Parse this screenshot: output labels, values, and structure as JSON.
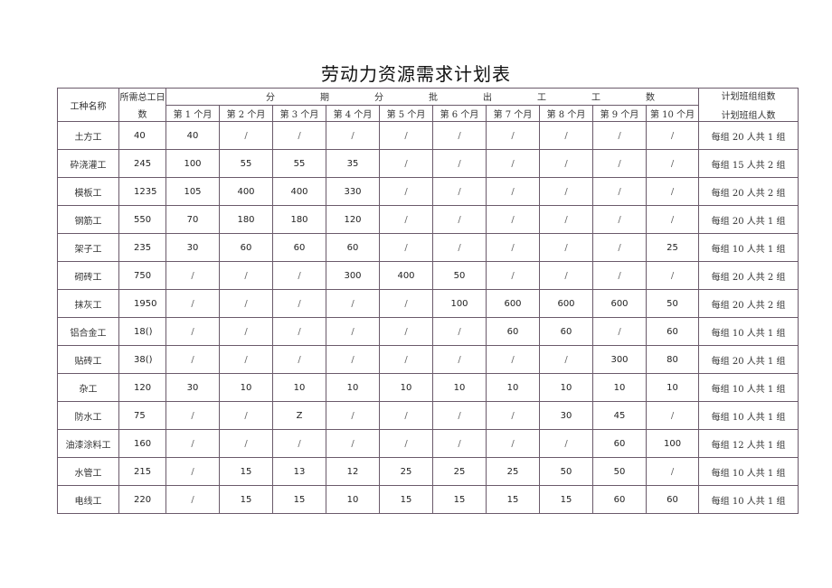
{
  "title": "劳动力资源需求计划表",
  "headers": {
    "trade": "工种名称",
    "total_days_line1": "所需总工日",
    "total_days_line2": "数",
    "period_chars": [
      "分",
      "期",
      "分",
      "批",
      "出",
      "工",
      "工",
      "数"
    ],
    "months": [
      "第 1 个月",
      "第 2 个月",
      "第 3 个月",
      "第 4 个月",
      "第 5 个月",
      "第 6 个月",
      "第 7 个月",
      "第 8 个月",
      "第 9 个月",
      "第 10 个月"
    ],
    "team_line1": "计划班组组数",
    "team_line2": "计划班组人数"
  },
  "rows": [
    {
      "trade": "土方工",
      "total": "40",
      "months": [
        "40",
        "/",
        "/",
        "/",
        "/",
        "/",
        "/",
        "/",
        "/",
        "/"
      ],
      "team": "每组 20 人共 1 组"
    },
    {
      "trade": "砕浇灌工",
      "total": "245",
      "months": [
        "100",
        "55",
        "55",
        "35",
        "/",
        "/",
        "/",
        "/",
        "/",
        "/"
      ],
      "team": "每组 15 人共 2 组"
    },
    {
      "trade": "模板工",
      "total": "1235",
      "months": [
        "105",
        "400",
        "400",
        "330",
        "/",
        "/",
        "/",
        "/",
        "/",
        "/"
      ],
      "team": "每组 20 人共 2 组"
    },
    {
      "trade": "钢筋工",
      "total": "550",
      "months": [
        "70",
        "180",
        "180",
        "120",
        "/",
        "/",
        "/",
        "/",
        "/",
        "/"
      ],
      "team": "每组 20 人共 1 组"
    },
    {
      "trade": "架子工",
      "total": "235",
      "months": [
        "30",
        "60",
        "60",
        "60",
        "/",
        "/",
        "/",
        "/",
        "/",
        "25"
      ],
      "team": "每组 10 人共 1 组"
    },
    {
      "trade": "砌砖工",
      "total": "750",
      "months": [
        "/",
        "/",
        "/",
        "300",
        "400",
        "50",
        "/",
        "/",
        "/",
        "/"
      ],
      "team": "每组 20 人共 2 组"
    },
    {
      "trade": "抹灰工",
      "total": "1950",
      "months": [
        "/",
        "/",
        "/",
        "/",
        "/",
        "100",
        "600",
        "600",
        "600",
        "50"
      ],
      "team": "每组 20 人共 2 组"
    },
    {
      "trade": "铝合金工",
      "total": "18()",
      "months": [
        "/",
        "/",
        "/",
        "/",
        "/",
        "/",
        "60",
        "60",
        "/",
        "60"
      ],
      "team": "每组 10 人共 1 组"
    },
    {
      "trade": "贴砖工",
      "total": "38()",
      "months": [
        "/",
        "/",
        "/",
        "/",
        "/",
        "/",
        "/",
        "/",
        "300",
        "80"
      ],
      "team": "每组 20 人共 1 组"
    },
    {
      "trade": "杂工",
      "total": "120",
      "months": [
        "30",
        "10",
        "10",
        "10",
        "10",
        "10",
        "10",
        "10",
        "10",
        "10"
      ],
      "team": "每组 10 人共 1 组"
    },
    {
      "trade": "防水工",
      "total": "75",
      "months": [
        "/",
        "/",
        "Z",
        "/",
        "/",
        "/",
        "/",
        "30",
        "45",
        "/"
      ],
      "team": "每组 10 人共 1 组"
    },
    {
      "trade": "油漆涂料工",
      "total": "160",
      "months": [
        "/",
        "/",
        "/",
        "/",
        "/",
        "/",
        "/",
        "/",
        "60",
        "100"
      ],
      "team": "每组 12 人共 1 组"
    },
    {
      "trade": "水管工",
      "total": "215",
      "months": [
        "/",
        "15",
        "13",
        "12",
        "25",
        "25",
        "25",
        "50",
        "50",
        "/"
      ],
      "team": "每组 10 人共 1 组"
    },
    {
      "trade": "电线工",
      "total": "220",
      "months": [
        "/",
        "15",
        "15",
        "10",
        "15",
        "15",
        "15",
        "15",
        "60",
        "60"
      ],
      "team": "每组 10 人共 1 组"
    }
  ]
}
